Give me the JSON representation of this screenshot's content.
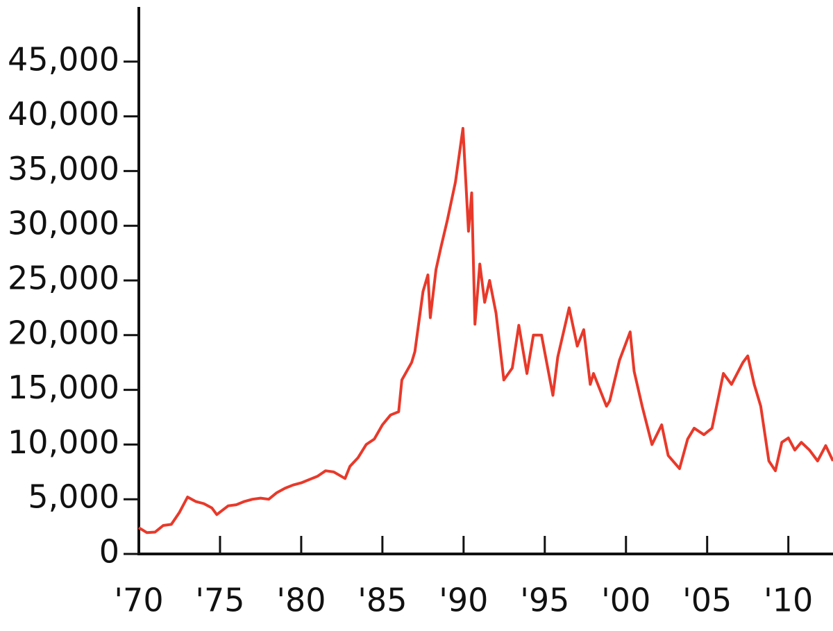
{
  "chart_data": {
    "type": "line",
    "color": "#e8392a",
    "x": [
      1970.0,
      1970.5,
      1971.0,
      1971.5,
      1972.0,
      1972.5,
      1973.0,
      1973.5,
      1974.0,
      1974.5,
      1974.8,
      1975.5,
      1976.0,
      1976.5,
      1977.0,
      1977.5,
      1978.0,
      1978.5,
      1979.0,
      1979.5,
      1980.0,
      1980.5,
      1981.0,
      1981.5,
      1982.0,
      1982.7,
      1983.0,
      1983.5,
      1984.0,
      1984.5,
      1985.0,
      1985.5,
      1986.0,
      1986.2,
      1986.8,
      1987.0,
      1987.5,
      1987.8,
      1987.95,
      1988.3,
      1988.6,
      1989.0,
      1989.5,
      1989.96,
      1990.3,
      1990.5,
      1990.7,
      1991.0,
      1991.3,
      1991.6,
      1992.0,
      1992.48,
      1993.0,
      1993.4,
      1993.9,
      1994.3,
      1994.8,
      1995.5,
      1995.8,
      1996.5,
      1997.0,
      1997.4,
      1997.8,
      1998.0,
      1998.8,
      1999.0,
      1999.6,
      2000.26,
      2000.5,
      2001.0,
      2001.6,
      2002.2,
      2002.6,
      2003.3,
      2003.8,
      2004.2,
      2004.8,
      2005.3,
      2006.0,
      2006.5,
      2007.2,
      2007.5,
      2007.9,
      2008.3,
      2008.8,
      2009.2,
      2009.6,
      2010.0,
      2010.4,
      2010.8,
      2011.3,
      2011.8,
      2012.3,
      2012.75
    ],
    "values": [
      2400,
      1950,
      2000,
      2600,
      2700,
      3800,
      5200,
      4800,
      4600,
      4200,
      3600,
      4400,
      4500,
      4800,
      5000,
      5100,
      5000,
      5600,
      6000,
      6300,
      6500,
      6800,
      7100,
      7600,
      7500,
      6900,
      8000,
      8800,
      10000,
      10500,
      11800,
      12700,
      13000,
      15900,
      17500,
      18500,
      24000,
      25500,
      21600,
      26000,
      28000,
      30500,
      34000,
      38900,
      29500,
      33000,
      21000,
      26500,
      23000,
      25000,
      22000,
      15900,
      17000,
      20900,
      16500,
      20000,
      20000,
      14500,
      18000,
      22500,
      19000,
      20500,
      15500,
      16500,
      13500,
      14000,
      17700,
      20300,
      16700,
      13500,
      10000,
      11800,
      9000,
      7800,
      10500,
      11500,
      10900,
      11500,
      16500,
      15500,
      17500,
      18100,
      15500,
      13500,
      8500,
      7600,
      10200,
      10600,
      9500,
      10200,
      9500,
      8500,
      9900,
      8500
    ],
    "xlim": [
      1970,
      2012.75
    ],
    "ylim": [
      0,
      50000
    ],
    "xticks": [
      {
        "value": 1970,
        "label": "'70"
      },
      {
        "value": 1975,
        "label": "'75"
      },
      {
        "value": 1980,
        "label": "'80"
      },
      {
        "value": 1985,
        "label": "'85"
      },
      {
        "value": 1990,
        "label": "'90"
      },
      {
        "value": 1995,
        "label": "'95"
      },
      {
        "value": 2000,
        "label": "'00"
      },
      {
        "value": 2005,
        "label": "'05"
      },
      {
        "value": 2010,
        "label": "'10"
      }
    ],
    "yticks": [
      0,
      {
        "value": 5000,
        "label": "5,000"
      },
      {
        "value": 10000,
        "label": "10,000"
      },
      {
        "value": 15000,
        "label": "15,000"
      },
      {
        "value": 20000,
        "label": "20,000"
      },
      {
        "value": 25000,
        "label": "25,000"
      },
      {
        "value": 30000,
        "label": "30,000"
      },
      {
        "value": 35000,
        "label": "35,000"
      },
      {
        "value": 40000,
        "label": "40,000"
      },
      {
        "value": 45000,
        "label": "45,000"
      }
    ]
  }
}
